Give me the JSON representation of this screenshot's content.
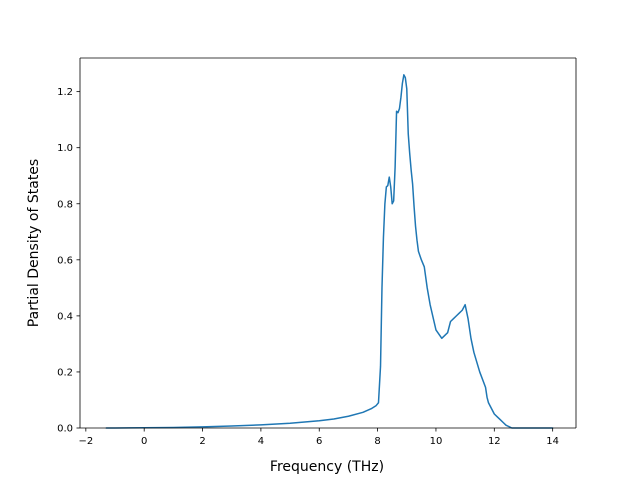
{
  "chart_data": {
    "type": "line",
    "title": "",
    "xlabel": "Frequency (THz)",
    "ylabel": "Partial Density of States",
    "xlim": [
      -2.2,
      14.8
    ],
    "ylim": [
      0.0,
      1.32
    ],
    "xticks": [
      -2,
      0,
      2,
      4,
      6,
      8,
      10,
      12,
      14
    ],
    "xtick_labels": [
      "−2",
      "0",
      "2",
      "4",
      "6",
      "8",
      "10",
      "12",
      "14"
    ],
    "yticks": [
      0.0,
      0.2,
      0.4,
      0.6,
      0.8,
      1.0,
      1.2
    ],
    "ytick_labels": [
      "0.0",
      "0.2",
      "0.4",
      "0.6",
      "0.8",
      "1.0",
      "1.2"
    ],
    "grid": false,
    "series_color": "#1f77b4",
    "series": [
      {
        "x": [
          -1.3,
          -1.0,
          0.0,
          1.0,
          2.0,
          3.0,
          4.0,
          5.0,
          6.0,
          6.5,
          7.0,
          7.5,
          7.8,
          7.95,
          8.03,
          8.1,
          8.15,
          8.2,
          8.25,
          8.3,
          8.35,
          8.4,
          8.45,
          8.5,
          8.55,
          8.6,
          8.65,
          8.7,
          8.75,
          8.8,
          8.85,
          8.9,
          8.95,
          9.0,
          9.05,
          9.1,
          9.15,
          9.2,
          9.25,
          9.3,
          9.35,
          9.4,
          9.5,
          9.6,
          9.7,
          9.8,
          10.0,
          10.2,
          10.4,
          10.5,
          10.6,
          10.7,
          10.8,
          10.9,
          11.0,
          11.1,
          11.2,
          11.3,
          11.5,
          11.7,
          11.75,
          11.8,
          11.9,
          12.0,
          12.1,
          12.2,
          12.3,
          12.4,
          12.5,
          12.6,
          12.65,
          12.7,
          12.75,
          13.0,
          14.0
        ],
        "y": [
          0.0,
          0.0,
          0.001,
          0.002,
          0.004,
          0.007,
          0.011,
          0.017,
          0.026,
          0.032,
          0.042,
          0.056,
          0.07,
          0.08,
          0.09,
          0.22,
          0.5,
          0.68,
          0.8,
          0.86,
          0.865,
          0.895,
          0.86,
          0.8,
          0.81,
          0.93,
          1.13,
          1.125,
          1.14,
          1.18,
          1.23,
          1.26,
          1.25,
          1.21,
          1.05,
          0.98,
          0.92,
          0.87,
          0.79,
          0.72,
          0.67,
          0.63,
          0.6,
          0.575,
          0.5,
          0.44,
          0.35,
          0.32,
          0.34,
          0.38,
          0.39,
          0.4,
          0.41,
          0.42,
          0.44,
          0.39,
          0.32,
          0.27,
          0.2,
          0.145,
          0.11,
          0.09,
          0.07,
          0.05,
          0.04,
          0.03,
          0.02,
          0.01,
          0.005,
          0.0,
          0.0,
          0.0,
          0.0,
          0.0,
          0.0
        ]
      }
    ]
  }
}
